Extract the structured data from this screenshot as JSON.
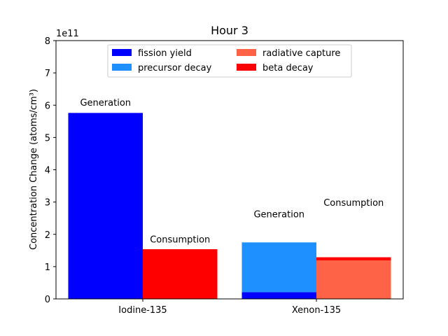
{
  "chart_data": {
    "type": "bar",
    "title": "Hour 3",
    "ylabel": "Concentration Change (atoms/cm³)",
    "xlabel": "",
    "y_offset_label": "1e11",
    "y_scale": 100000000000,
    "ylim": [
      0,
      800000000000
    ],
    "yticks": [
      0,
      1,
      2,
      3,
      4,
      5,
      6,
      7,
      8
    ],
    "categories": [
      "Iodine-135",
      "Xenon-135"
    ],
    "groups": [
      "Generation",
      "Consumption"
    ],
    "series": [
      {
        "name": "fission yield",
        "color": "#0000ff",
        "group": "Generation",
        "values": [
          576000000000,
          21000000000
        ]
      },
      {
        "name": "precursor decay",
        "color": "#1e90ff",
        "group": "Generation",
        "values": [
          0,
          154000000000
        ]
      },
      {
        "name": "radiative capture",
        "color": "#ff6347",
        "group": "Consumption",
        "values": [
          0,
          119000000000
        ]
      },
      {
        "name": "beta decay",
        "color": "#ff0000",
        "group": "Consumption",
        "values": [
          154000000000,
          10000000000
        ]
      }
    ],
    "annotations": [
      {
        "text": "Generation",
        "category": "Iodine-135",
        "group": "Generation",
        "y": 592000000000
      },
      {
        "text": "Consumption",
        "category": "Iodine-135",
        "group": "Consumption",
        "y": 168000000000
      },
      {
        "text": "Generation",
        "category": "Xenon-135",
        "group": "Generation",
        "y": 246000000000
      },
      {
        "text": "Consumption",
        "category": "Xenon-135",
        "group": "Consumption",
        "y": 282000000000
      }
    ],
    "legend": {
      "placement": "upper center",
      "columns": 2
    },
    "grid": false
  }
}
